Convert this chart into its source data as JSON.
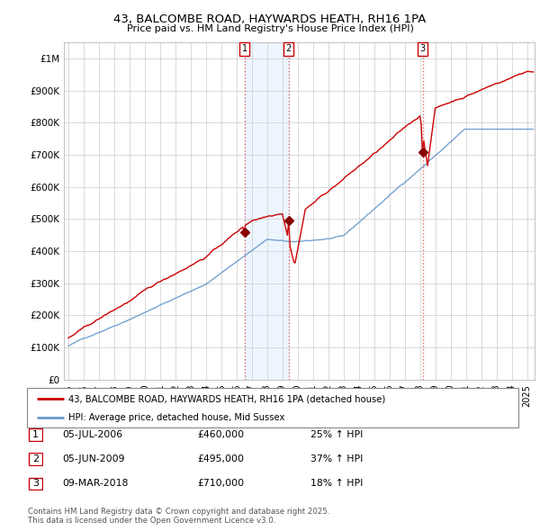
{
  "title": "43, BALCOMBE ROAD, HAYWARDS HEATH, RH16 1PA",
  "subtitle": "Price paid vs. HM Land Registry's House Price Index (HPI)",
  "legend_label_red": "43, BALCOMBE ROAD, HAYWARDS HEATH, RH16 1PA (detached house)",
  "legend_label_blue": "HPI: Average price, detached house, Mid Sussex",
  "transactions": [
    {
      "num": 1,
      "date": "05-JUL-2006",
      "x_year": 2006.54,
      "price": 460000,
      "pct": "25%",
      "dir": "↑"
    },
    {
      "num": 2,
      "date": "05-JUN-2009",
      "x_year": 2009.42,
      "price": 495000,
      "pct": "37%",
      "dir": "↑"
    },
    {
      "num": 3,
      "date": "09-MAR-2018",
      "x_year": 2018.18,
      "price": 710000,
      "pct": "18%",
      "dir": "↑"
    }
  ],
  "footer": "Contains HM Land Registry data © Crown copyright and database right 2025.\nThis data is licensed under the Open Government Licence v3.0.",
  "red_color": "#cc0000",
  "blue_color": "#6699cc",
  "fill_color": "#ddeeff",
  "dashed_color": "#dd4444",
  "background_color": "#ffffff",
  "grid_color": "#cccccc",
  "ylim": [
    0,
    1050000
  ],
  "xlim_start": 1994.7,
  "xlim_end": 2025.5,
  "yticks": [
    0,
    100000,
    200000,
    300000,
    400000,
    500000,
    600000,
    700000,
    800000,
    900000,
    1000000
  ],
  "ytick_labels": [
    "£0",
    "£100K",
    "£200K",
    "£300K",
    "£400K",
    "£500K",
    "£600K",
    "£700K",
    "£800K",
    "£900K",
    "£1M"
  ],
  "xticks": [
    1995,
    1996,
    1997,
    1998,
    1999,
    2000,
    2001,
    2002,
    2003,
    2004,
    2005,
    2006,
    2007,
    2008,
    2009,
    2010,
    2011,
    2012,
    2013,
    2014,
    2015,
    2016,
    2017,
    2018,
    2019,
    2020,
    2021,
    2022,
    2023,
    2024,
    2025
  ]
}
